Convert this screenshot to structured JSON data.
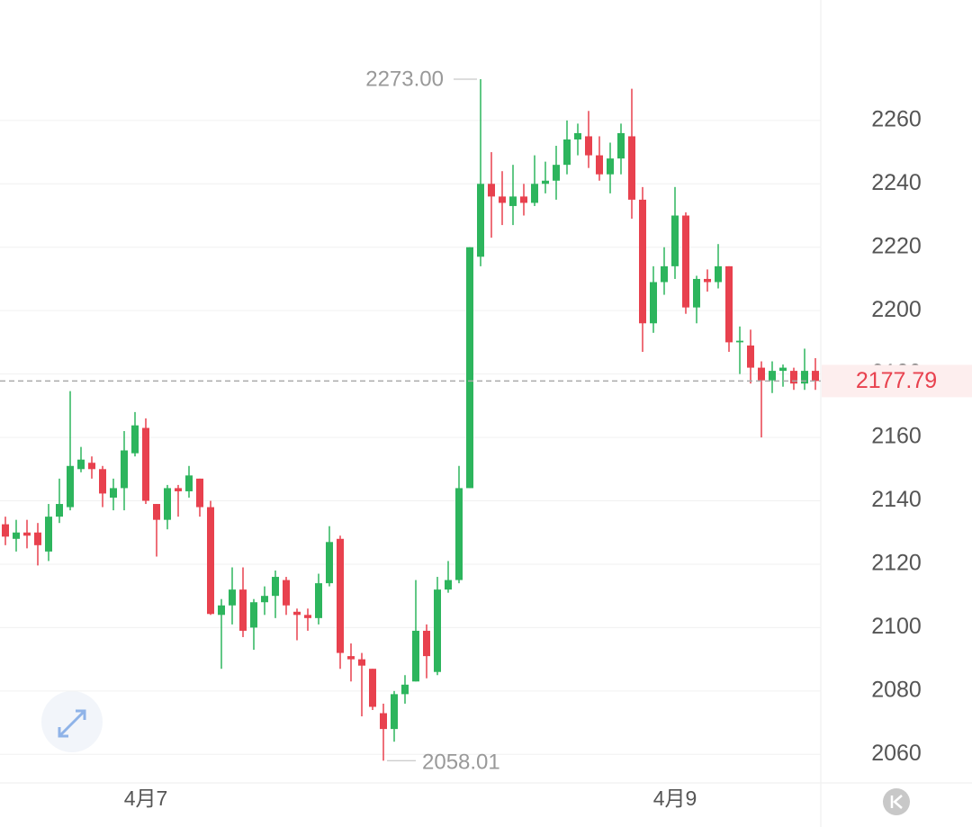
{
  "chart_data": {
    "type": "candlestick",
    "categories": [
      null,
      null,
      null,
      null,
      null,
      null,
      null,
      null,
      null,
      null,
      null,
      null,
      null,
      "4月7",
      null,
      null,
      null,
      null,
      null,
      null,
      null,
      null,
      null,
      null,
      null,
      null,
      null,
      null,
      null,
      null,
      null,
      null,
      null,
      null,
      null,
      null,
      null,
      null,
      null,
      null,
      null,
      null,
      null,
      null,
      null,
      null,
      null,
      null,
      null,
      null,
      null,
      null,
      null,
      null,
      null,
      null,
      null,
      null,
      null,
      null,
      null,
      null,
      "4月9",
      null,
      null,
      null,
      null,
      null,
      null,
      null,
      null,
      null,
      null,
      null,
      null,
      null
    ],
    "open": [
      2132.6,
      2128,
      2130,
      2130,
      2124,
      2135,
      2138,
      2150,
      2152,
      2150,
      2141,
      2144,
      2155,
      2163,
      2139,
      2134,
      2144,
      2143,
      2147,
      2138,
      2104,
      2107,
      2112,
      2100,
      2108,
      2110,
      2115,
      2105,
      2104,
      2103,
      2114,
      2128,
      2091,
      2090,
      2087,
      2073,
      2068,
      2079,
      2083,
      2099,
      2086,
      2112,
      2115,
      2144,
      2217,
      2240,
      2236,
      2233,
      2236,
      2234,
      2240,
      2241,
      2246,
      2254,
      2255,
      2249,
      2243,
      2248,
      2255,
      2235,
      2196,
      2209,
      2214,
      2230,
      2201,
      2210,
      2209,
      2214,
      2190,
      2189,
      2182,
      2178,
      2181,
      2181,
      2177,
      2181
    ],
    "high": [
      2135,
      2134,
      2134,
      2133,
      2139,
      2147,
      2174.6,
      2157,
      2154,
      2151,
      2147,
      2162,
      2168,
      2166,
      2139,
      2145,
      2145,
      2151,
      2147,
      2140,
      2109,
      2119,
      2119,
      2109,
      2113,
      2118,
      2116,
      2106,
      2106,
      2117,
      2132,
      2129,
      2095,
      2092,
      2087,
      2076,
      2080,
      2085,
      2115,
      2101,
      2116,
      2121,
      2151,
      2220,
      2273,
      2250,
      2244,
      2246,
      2240,
      2249,
      2247,
      2252,
      2260,
      2259,
      2263,
      2255,
      2253,
      2259,
      2270,
      2239,
      2214,
      2220,
      2239,
      2231,
      2211,
      2213,
      2221,
      2214,
      2195,
      2194,
      2184,
      2184,
      2183,
      2182,
      2188,
      2185
    ],
    "low": [
      2126,
      2124,
      2125,
      2119.6,
      2121,
      2133,
      2137,
      2149,
      2147,
      2138,
      2137,
      2137,
      2154,
      2139,
      2122.4,
      2131,
      2135,
      2141,
      2135,
      2104,
      2087,
      2101,
      2097,
      2093,
      2104,
      2103,
      2104,
      2096,
      2099,
      2101,
      2113,
      2087,
      2083,
      2072,
      2074,
      2058.01,
      2064,
      2076,
      2083,
      2084,
      2085,
      2111,
      2114,
      2144,
      2214,
      2223,
      2227,
      2227,
      2230,
      2233,
      2237,
      2235,
      2243,
      2249,
      2245,
      2241,
      2237,
      2243,
      2229,
      2187,
      2193,
      2205,
      2210,
      2199,
      2196,
      2206,
      2207,
      2187,
      2180,
      2177,
      2160,
      2174,
      2176,
      2175,
      2175,
      2175
    ],
    "close": [
      2128.7,
      2130,
      2129,
      2126,
      2135,
      2139,
      2151,
      2153,
      2150,
      2142.3,
      2144,
      2155.9,
      2163.8,
      2140,
      2134,
      2144,
      2143,
      2148,
      2138,
      2104.3,
      2107,
      2112,
      2099,
      2108,
      2110,
      2116,
      2107,
      2104,
      2103,
      2114,
      2127,
      2092,
      2090,
      2088,
      2075,
      2068,
      2079,
      2082,
      2099,
      2091,
      2112,
      2115,
      2144,
      2220,
      2240,
      2236,
      2234,
      2236,
      2234,
      2240,
      2241,
      2246,
      2254,
      2256,
      2249,
      2243,
      2248,
      2256,
      2235,
      2196,
      2209,
      2214,
      2230,
      2201,
      2210,
      2209,
      2214,
      2190,
      2190.5,
      2182,
      2178,
      2181,
      2182,
      2177,
      2181,
      2177.79
    ],
    "up_color": "#2db55d",
    "down_color": "#e8414e",
    "ylim": [
      2051,
      2298
    ],
    "yticks": [
      2060,
      2080,
      2100,
      2120,
      2140,
      2160,
      2180,
      2200,
      2220,
      2240,
      2260
    ],
    "grid": true,
    "max_label": {
      "value": 2273,
      "label": "2273.00"
    },
    "min_label": {
      "value": 2058.01,
      "label": "2058.01"
    },
    "last_price": 2177.79
  }
}
